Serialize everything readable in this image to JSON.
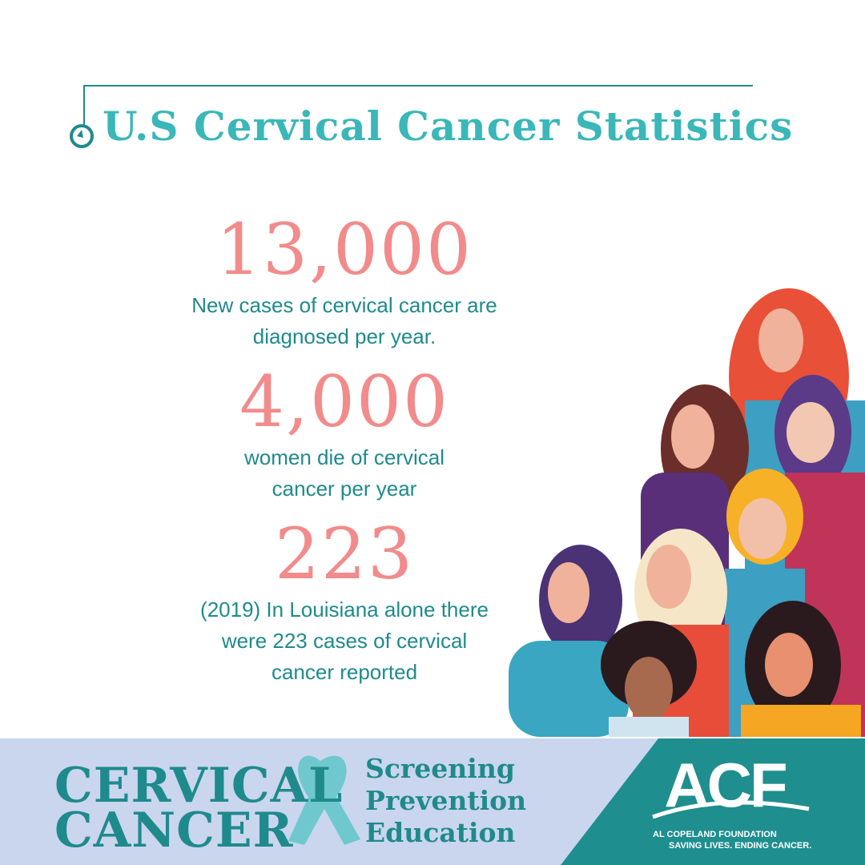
{
  "title": "U.S Cervical Cancer Statistics",
  "stats": [
    {
      "number": "13,000",
      "description": [
        "New cases of cervical cancer are",
        "diagnosed per year."
      ]
    },
    {
      "number": "4,000",
      "description": [
        "women die of cervical",
        "cancer per year"
      ]
    },
    {
      "number": "223",
      "description": [
        "(2019) In Louisiana alone there",
        "were 223 cases of cervical",
        "cancer reported"
      ]
    }
  ],
  "footer": {
    "campaign": [
      "CERVICAL",
      "CANCER"
    ],
    "tagline": [
      "Screening",
      "Prevention",
      "Education"
    ],
    "logo": "ACF",
    "foundation": "AL COPELAND FOUNDATION",
    "slogan": "SAVING LIVES. ENDING CANCER."
  }
}
